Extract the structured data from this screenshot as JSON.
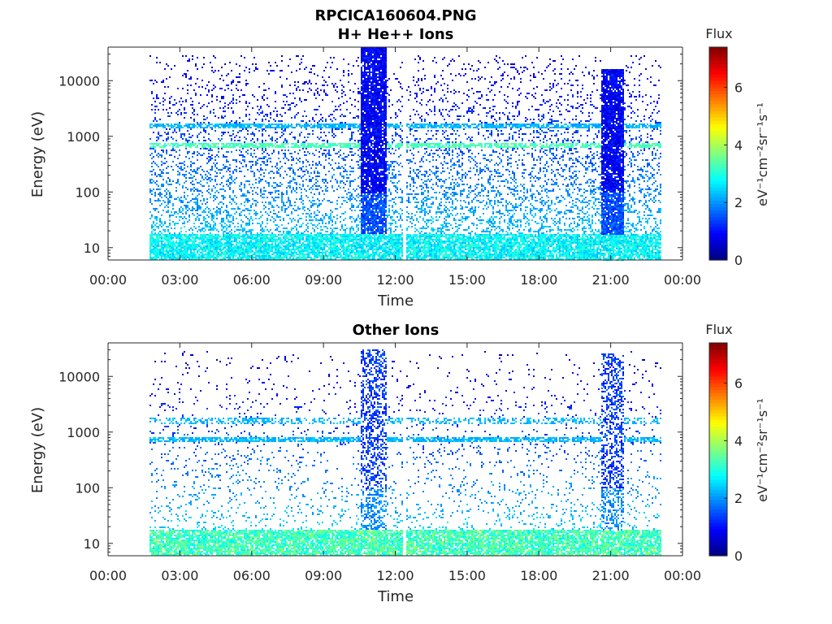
{
  "figure_title": "RPCICA160604.PNG",
  "chart_data": [
    {
      "type": "heatmap",
      "title": "H+ He++ Ions",
      "xlabel": "Time",
      "ylabel": "Energy (eV)",
      "xticks": [
        "00:00",
        "03:00",
        "06:00",
        "09:00",
        "12:00",
        "15:00",
        "18:00",
        "21:00",
        "00:00"
      ],
      "xlim_hours": [
        0,
        24
      ],
      "yscale": "log",
      "ylim": [
        6,
        40000
      ],
      "yticks": [
        10,
        100,
        1000,
        10000
      ],
      "ytick_labels": [
        "10",
        "100",
        "1000",
        "10000"
      ],
      "data_start_hour": 1.75,
      "data_end_hour": 23.1,
      "gap_hour": 12.35,
      "bursts": [
        {
          "start_hour": 10.5,
          "end_hour": 11.6,
          "max_energy": 40000
        },
        {
          "start_hour": 20.6,
          "end_hour": 21.5,
          "max_energy": 16000
        }
      ],
      "bands_energy": [
        700,
        1600
      ],
      "colorbar": {
        "label": "Flux",
        "units": "eV⁻¹cm⁻²sr⁻¹s⁻¹",
        "min": 0,
        "max": 7.4,
        "ticks": [
          "0",
          "2",
          "4",
          "6"
        ],
        "colormap": "jet"
      }
    },
    {
      "type": "heatmap",
      "title": "Other Ions",
      "xlabel": "Time",
      "ylabel": "Energy (eV)",
      "xticks": [
        "00:00",
        "03:00",
        "06:00",
        "09:00",
        "12:00",
        "15:00",
        "18:00",
        "21:00",
        "00:00"
      ],
      "xlim_hours": [
        0,
        24
      ],
      "yscale": "log",
      "ylim": [
        6,
        40000
      ],
      "yticks": [
        10,
        100,
        1000,
        10000
      ],
      "ytick_labels": [
        "10",
        "100",
        "1000",
        "10000"
      ],
      "data_start_hour": 1.75,
      "data_end_hour": 23.1,
      "gap_hour": 12.35,
      "bursts": [
        {
          "start_hour": 10.5,
          "end_hour": 11.6,
          "max_energy": 30000
        },
        {
          "start_hour": 20.6,
          "end_hour": 21.5,
          "max_energy": 25000
        }
      ],
      "bands_energy": [
        750,
        1650
      ],
      "colorbar": {
        "label": "Flux",
        "units": "eV⁻¹cm⁻²sr⁻¹s⁻¹",
        "min": 0,
        "max": 7.4,
        "ticks": [
          "0",
          "2",
          "4",
          "6"
        ],
        "colormap": "jet"
      }
    }
  ]
}
